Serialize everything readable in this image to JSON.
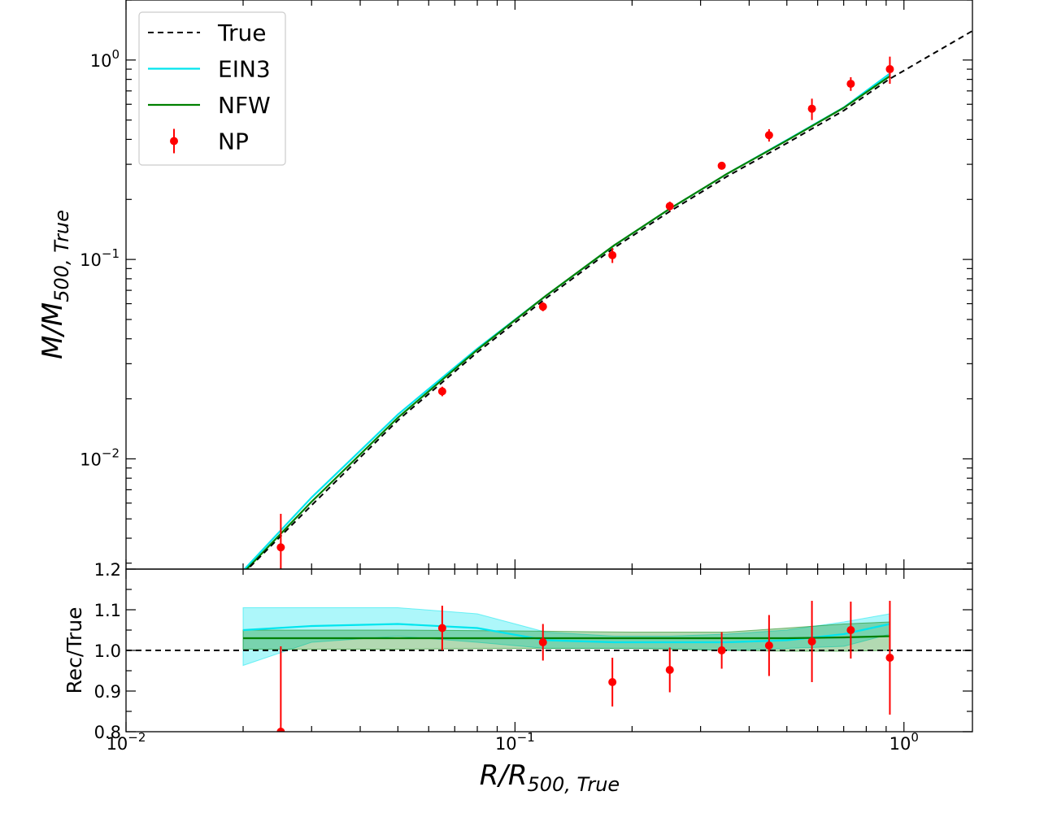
{
  "chart_data": [
    {
      "panel": "top",
      "type": "line",
      "xlabel": "R/R500,True",
      "ylabel": "M/M500,True",
      "xscale": "log",
      "yscale": "log",
      "xlim": [
        0.01,
        1.5
      ],
      "ylim": [
        0.0028,
        2.0
      ],
      "y_ticks": [
        {
          "value": 1,
          "mantissa": "10",
          "exp": "0"
        },
        {
          "value": 0.1,
          "mantissa": "10",
          "exp": "−1"
        },
        {
          "value": 0.01,
          "mantissa": "10",
          "exp": "−2"
        }
      ],
      "legend": {
        "placement": "top-left",
        "entries": [
          {
            "label": "True",
            "style": "dashed",
            "color": "#000000"
          },
          {
            "label": "EIN3",
            "style": "line",
            "color": "#00e5ee"
          },
          {
            "label": "NFW",
            "style": "line",
            "color": "#008000"
          },
          {
            "label": "NP",
            "style": "errorbar",
            "color": "#ff0000"
          }
        ]
      },
      "series": [
        {
          "name": "True",
          "x": [
            0.0192,
            0.03,
            0.05,
            0.08,
            0.12,
            0.18,
            0.25,
            0.35,
            0.5,
            0.7,
            0.92,
            1.5
          ],
          "y": [
            0.00245,
            0.00585,
            0.0156,
            0.0342,
            0.0638,
            0.1145,
            0.174,
            0.26,
            0.383,
            0.558,
            0.805,
            1.4
          ]
        },
        {
          "name": "EIN3",
          "x": [
            0.02,
            0.03,
            0.05,
            0.08,
            0.12,
            0.18,
            0.25,
            0.35,
            0.5,
            0.7,
            0.92
          ],
          "y": [
            0.00275,
            0.0064,
            0.0167,
            0.0357,
            0.0657,
            0.1178,
            0.1795,
            0.268,
            0.397,
            0.578,
            0.855
          ]
        },
        {
          "name": "NFW",
          "x": [
            0.02,
            0.03,
            0.05,
            0.08,
            0.12,
            0.18,
            0.25,
            0.35,
            0.5,
            0.7,
            0.92
          ],
          "y": [
            0.00268,
            0.0061,
            0.0161,
            0.0352,
            0.0657,
            0.1178,
            0.1795,
            0.268,
            0.395,
            0.576,
            0.83
          ]
        },
        {
          "name": "NP",
          "x": [
            0.025,
            0.065,
            0.118,
            0.178,
            0.25,
            0.34,
            0.45,
            0.58,
            0.73,
            0.92
          ],
          "y": [
            0.0036,
            0.0218,
            0.058,
            0.105,
            0.185,
            0.295,
            0.42,
            0.57,
            0.76,
            0.9
          ],
          "err_low": [
            0.0017,
            0.0012,
            0.003,
            0.009,
            0.01,
            0.012,
            0.03,
            0.07,
            0.06,
            0.14
          ],
          "err_high": [
            0.0017,
            0.0012,
            0.003,
            0.009,
            0.01,
            0.012,
            0.03,
            0.07,
            0.06,
            0.14
          ]
        }
      ]
    },
    {
      "panel": "bottom",
      "type": "line",
      "xlabel": "R/R500,True",
      "ylabel": "Rec/True",
      "xscale": "log",
      "xlim": [
        0.01,
        1.5
      ],
      "ylim": [
        0.8,
        1.2
      ],
      "x_ticks": [
        {
          "value": 0.01,
          "mantissa": "10",
          "exp": "−2"
        },
        {
          "value": 0.1,
          "mantissa": "10",
          "exp": "−1"
        },
        {
          "value": 1,
          "mantissa": "10",
          "exp": "0"
        }
      ],
      "y_ticks": [
        "0.8",
        "0.9",
        "1.0",
        "1.1",
        "1.2"
      ],
      "reference_line": 1.0,
      "bands": [
        {
          "name": "EIN3",
          "color": "#00e5ee",
          "x": [
            0.02,
            0.03,
            0.05,
            0.08,
            0.12,
            0.18,
            0.25,
            0.35,
            0.5,
            0.7,
            0.92
          ],
          "low": [
            0.963,
            1.02,
            1.035,
            1.02,
            1.005,
            1.005,
            1.005,
            1.0,
            1.005,
            1.01,
            1.04
          ],
          "high": [
            1.105,
            1.105,
            1.105,
            1.09,
            1.045,
            1.035,
            1.035,
            1.04,
            1.05,
            1.07,
            1.09
          ]
        },
        {
          "name": "NFW",
          "color": "#008000",
          "x": [
            0.02,
            0.05,
            0.1,
            0.2,
            0.35,
            0.5,
            0.7,
            0.92
          ],
          "low": [
            1.003,
            1.003,
            1.005,
            1.005,
            1.0,
            0.998,
            0.998,
            1.0
          ],
          "high": [
            1.05,
            1.05,
            1.048,
            1.045,
            1.045,
            1.055,
            1.065,
            1.07
          ]
        }
      ],
      "series": [
        {
          "name": "EIN3",
          "x": [
            0.02,
            0.03,
            0.05,
            0.08,
            0.12,
            0.18,
            0.25,
            0.35,
            0.5,
            0.7,
            0.92
          ],
          "y": [
            1.05,
            1.06,
            1.065,
            1.055,
            1.025,
            1.02,
            1.02,
            1.02,
            1.025,
            1.04,
            1.065
          ]
        },
        {
          "name": "NFW",
          "x": [
            0.02,
            0.05,
            0.1,
            0.2,
            0.35,
            0.5,
            0.7,
            0.92
          ],
          "y": [
            1.03,
            1.03,
            1.03,
            1.03,
            1.03,
            1.03,
            1.032,
            1.035
          ]
        },
        {
          "name": "NP",
          "x": [
            0.025,
            0.065,
            0.118,
            0.178,
            0.25,
            0.34,
            0.45,
            0.58,
            0.73,
            0.92
          ],
          "y": [
            0.8,
            1.055,
            1.02,
            0.922,
            0.952,
            1.0,
            1.012,
            1.022,
            1.05,
            0.982
          ],
          "err_low": [
            0.21,
            0.055,
            0.045,
            0.06,
            0.055,
            0.045,
            0.075,
            0.1,
            0.07,
            0.14
          ],
          "err_high": [
            0.21,
            0.055,
            0.045,
            0.06,
            0.055,
            0.045,
            0.075,
            0.1,
            0.07,
            0.14
          ]
        }
      ]
    }
  ]
}
